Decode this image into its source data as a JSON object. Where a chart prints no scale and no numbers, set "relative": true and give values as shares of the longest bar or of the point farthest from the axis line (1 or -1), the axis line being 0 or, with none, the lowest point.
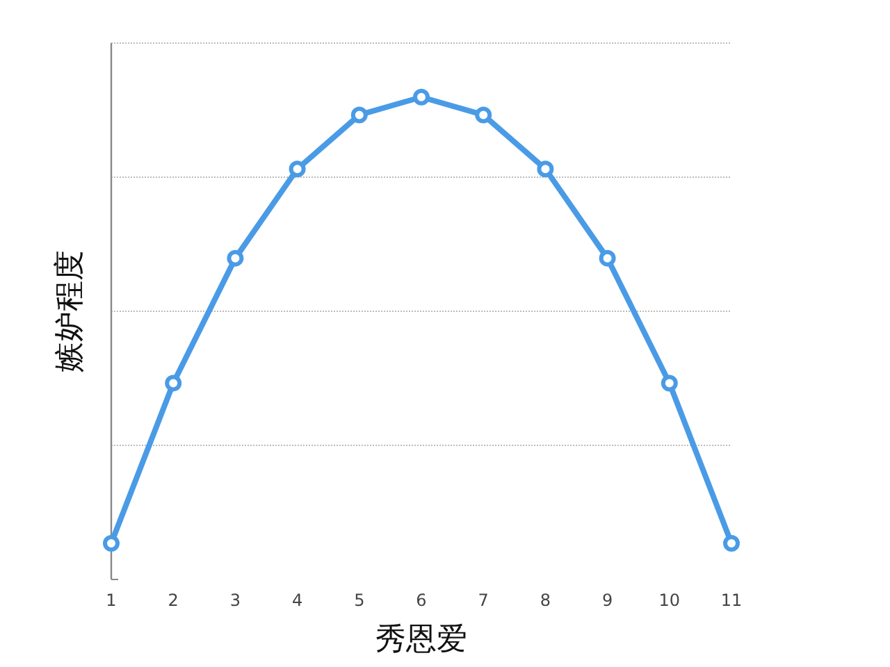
{
  "chart_data": {
    "type": "line",
    "relative": true,
    "xlabel": "秀恩爱",
    "ylabel": "嫉妒程度",
    "categories": [
      "1",
      "2",
      "3",
      "4",
      "5",
      "6",
      "7",
      "8",
      "9",
      "10",
      "11"
    ],
    "series": [
      {
        "color": "#4a9be6",
        "values": [
          0.075,
          0.407,
          0.666,
          0.851,
          0.963,
          1,
          0.963,
          0.851,
          0.666,
          0.407,
          0.075
        ]
      }
    ],
    "grid": "y",
    "marker": "circle",
    "line_style": "solid"
  }
}
